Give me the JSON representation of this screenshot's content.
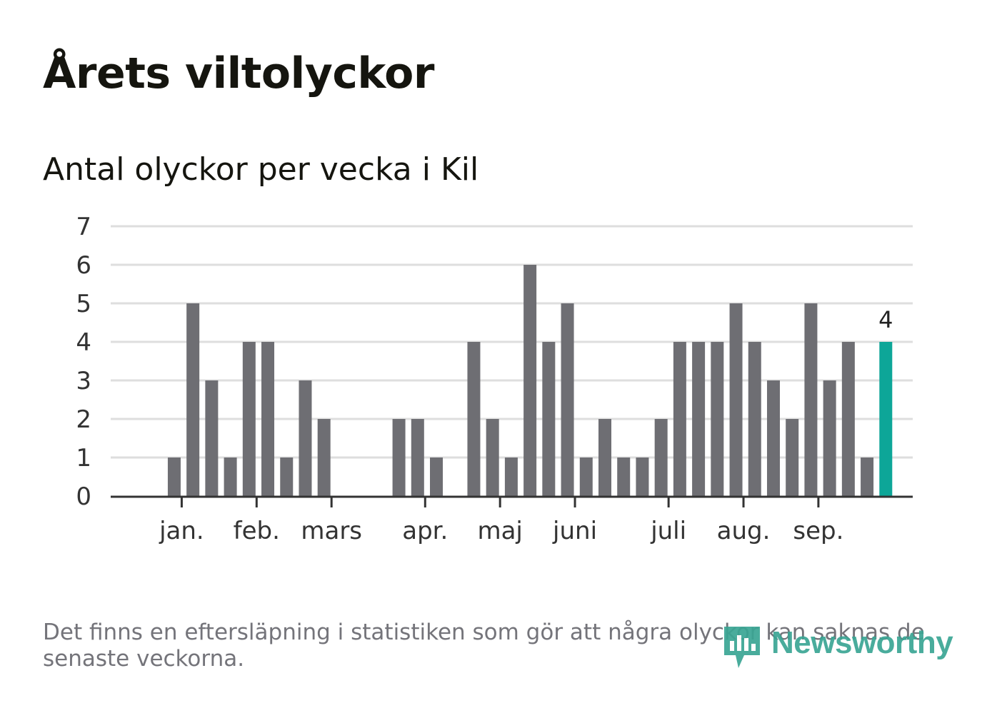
{
  "header": {
    "title": "Årets viltolyckor",
    "subtitle": "Antal olyckor per vecka i Kil"
  },
  "footer": {
    "note": "Det finns en eftersläpning i statistiken som gör att några olyckor kan saknas de senaste veckorna.",
    "brand": "Newsworthy"
  },
  "colors": {
    "bar": "#6e6e73",
    "highlight": "#0da698",
    "grid": "#dedede",
    "axis": "#333333",
    "text": "#333333"
  },
  "chart_data": {
    "type": "bar",
    "title": "Antal olyckor per vecka i Kil",
    "xlabel": "",
    "ylabel": "",
    "ylim": [
      0,
      7
    ],
    "yticks": [
      0,
      1,
      2,
      3,
      4,
      5,
      6,
      7
    ],
    "grid": true,
    "x_type": "week",
    "weeks": [
      1,
      2,
      3,
      4,
      5,
      6,
      7,
      8,
      9,
      10,
      11,
      12,
      13,
      14,
      15,
      16,
      17,
      18,
      19,
      20,
      21,
      22,
      23,
      24,
      25,
      26,
      27,
      28,
      29,
      30,
      31,
      32,
      33,
      34,
      35,
      36,
      37,
      38,
      39,
      40,
      41,
      42
    ],
    "values": [
      0,
      0,
      1,
      5,
      3,
      1,
      4,
      4,
      1,
      3,
      2,
      0,
      0,
      0,
      2,
      2,
      1,
      0,
      4,
      2,
      1,
      6,
      4,
      5,
      1,
      2,
      1,
      1,
      2,
      4,
      4,
      4,
      5,
      4,
      3,
      2,
      5,
      3,
      4,
      1,
      4,
      0
    ],
    "highlight_index": 40,
    "highlight_label": "4",
    "month_ticks": [
      {
        "label": "jan.",
        "week": 3.4
      },
      {
        "label": "feb.",
        "week": 7.4
      },
      {
        "label": "mars",
        "week": 11.4
      },
      {
        "label": "apr.",
        "week": 16.4
      },
      {
        "label": "maj",
        "week": 20.4
      },
      {
        "label": "juni",
        "week": 24.4
      },
      {
        "label": "juli",
        "week": 29.4
      },
      {
        "label": "aug.",
        "week": 33.4
      },
      {
        "label": "sep.",
        "week": 37.4
      }
    ]
  }
}
